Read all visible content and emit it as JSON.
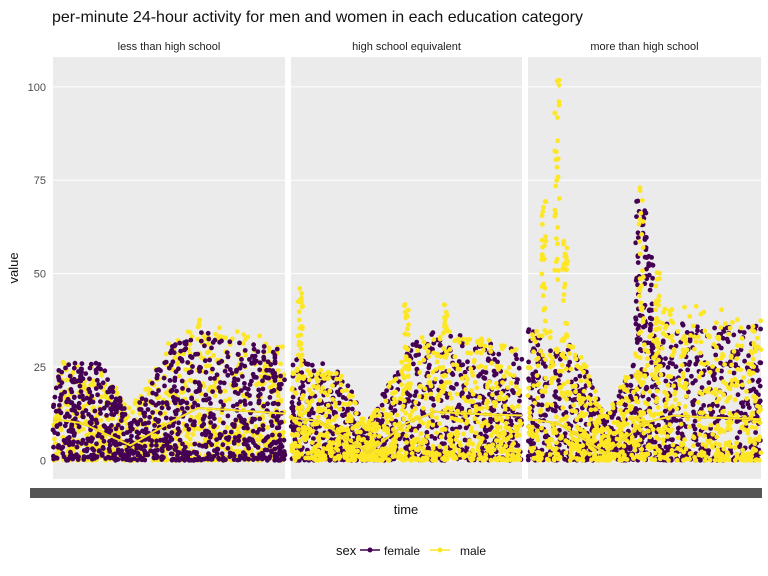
{
  "chart_data": {
    "type": "scatter",
    "title": "per-minute 24-hour activity for men and women in each education category",
    "xlabel": "time",
    "ylabel": "value",
    "ylim": [
      -5,
      108
    ],
    "xlim": [
      0,
      1440
    ],
    "y_ticks": [
      0,
      25,
      50,
      75,
      100
    ],
    "y_tick_labels": [
      "0",
      "25",
      "50",
      "75",
      "100"
    ],
    "x_tick_labels_overplotted": true,
    "grid": true,
    "legend": {
      "title": "sex",
      "position": "bottom",
      "entries": [
        "female",
        "male"
      ]
    },
    "colors": {
      "female": "#440154",
      "male": "#fde725",
      "panel_bg": "#ebebeb",
      "grid": "#ffffff"
    },
    "panels": [
      {
        "label": "less than high school",
        "series": [
          {
            "name": "female",
            "base_max": [
              [
                0,
                28
              ],
              [
                300,
                26
              ],
              [
                480,
                12
              ],
              [
                720,
                30
              ],
              [
                900,
                35
              ],
              [
                1100,
                32
              ],
              [
                1440,
                30
              ]
            ],
            "spikes": [],
            "smooth": [
              [
                0,
                11
              ],
              [
                180,
                10
              ],
              [
                480,
                4
              ],
              [
                720,
                10
              ],
              [
                900,
                14
              ],
              [
                1100,
                13.5
              ],
              [
                1440,
                12.5
              ]
            ]
          },
          {
            "name": "male",
            "base_max": [
              [
                0,
                27
              ],
              [
                300,
                25
              ],
              [
                480,
                14
              ],
              [
                720,
                32
              ],
              [
                900,
                38
              ],
              [
                1100,
                35
              ],
              [
                1440,
                32
              ]
            ],
            "spikes": [],
            "smooth": [
              [
                0,
                11
              ],
              [
                180,
                10
              ],
              [
                480,
                4
              ],
              [
                720,
                10
              ],
              [
                900,
                14
              ],
              [
                1100,
                13.5
              ],
              [
                1440,
                12.5
              ]
            ]
          }
        ]
      },
      {
        "label": "high school equivalent",
        "series": [
          {
            "name": "female",
            "base_max": [
              [
                0,
                28
              ],
              [
                300,
                25
              ],
              [
                480,
                10
              ],
              [
                720,
                30
              ],
              [
                900,
                35
              ],
              [
                1100,
                33
              ],
              [
                1440,
                30
              ]
            ],
            "spikes": [],
            "smooth": [
              [
                0,
                11.5
              ],
              [
                180,
                10.5
              ],
              [
                480,
                2
              ],
              [
                720,
                10
              ],
              [
                900,
                13
              ],
              [
                1100,
                12.5
              ],
              [
                1440,
                12
              ]
            ]
          },
          {
            "name": "male",
            "base_max": [
              [
                0,
                26
              ],
              [
                300,
                24
              ],
              [
                480,
                10
              ],
              [
                720,
                30
              ],
              [
                900,
                36
              ],
              [
                1100,
                34
              ],
              [
                1440,
                30
              ]
            ],
            "spikes": [
              [
                60,
                46
              ],
              [
                720,
                44
              ],
              [
                960,
                43
              ]
            ],
            "smooth": [
              [
                0,
                11.5
              ],
              [
                180,
                10.5
              ],
              [
                480,
                2
              ],
              [
                720,
                10
              ],
              [
                900,
                13
              ],
              [
                1100,
                12.5
              ],
              [
                1440,
                12
              ]
            ]
          }
        ]
      },
      {
        "label": "more than high school",
        "series": [
          {
            "name": "female",
            "base_max": [
              [
                0,
                36
              ],
              [
                300,
                30
              ],
              [
                480,
                12
              ],
              [
                720,
                32
              ],
              [
                900,
                38
              ],
              [
                1100,
                36
              ],
              [
                1440,
                36
              ]
            ],
            "spikes": [
              [
                680,
                70
              ],
              [
                720,
                68
              ],
              [
                760,
                55
              ]
            ],
            "smooth": [
              [
                0,
                11
              ],
              [
                180,
                10
              ],
              [
                480,
                2
              ],
              [
                720,
                10
              ],
              [
                900,
                12
              ],
              [
                1100,
                11.5
              ],
              [
                1440,
                11
              ]
            ]
          },
          {
            "name": "male",
            "base_max": [
              [
                0,
                38
              ],
              [
                300,
                32
              ],
              [
                480,
                12
              ],
              [
                720,
                34
              ],
              [
                900,
                45
              ],
              [
                1100,
                42
              ],
              [
                1440,
                38
              ]
            ],
            "spikes": [
              [
                100,
                72
              ],
              [
                180,
                104
              ],
              [
                230,
                60
              ],
              [
                700,
                74
              ],
              [
                800,
                52
              ]
            ],
            "smooth": [
              [
                0,
                11
              ],
              [
                180,
                10
              ],
              [
                480,
                2
              ],
              [
                720,
                10
              ],
              [
                900,
                12
              ],
              [
                1100,
                11.5
              ],
              [
                1440,
                11
              ]
            ]
          }
        ]
      }
    ]
  }
}
